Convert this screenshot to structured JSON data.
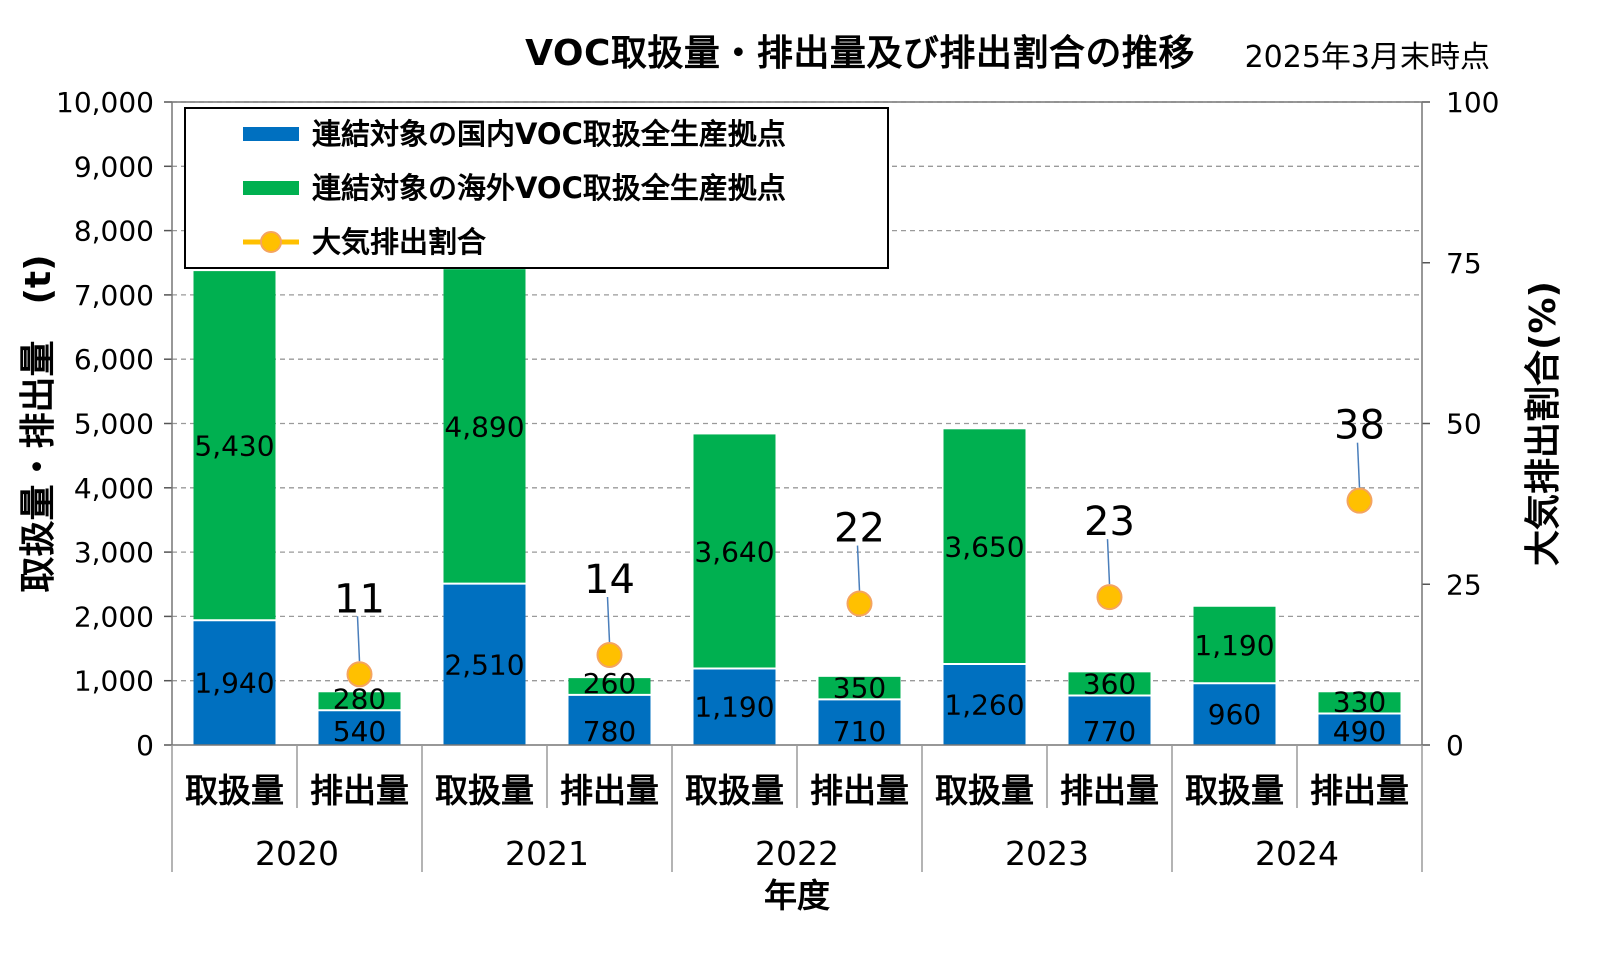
{
  "header": {
    "title": "VOC取扱量・排出量及び排出割合の推移",
    "note": "2025年3月末時点"
  },
  "chart_data": {
    "type": "bar",
    "stacked": true,
    "groups": [
      "2020",
      "2021",
      "2022",
      "2023",
      "2024"
    ],
    "subcategories": [
      "取扱量",
      "排出量"
    ],
    "categories": [
      "2020 取扱量",
      "2020 排出量",
      "2021 取扱量",
      "2021 排出量",
      "2022 取扱量",
      "2022 排出量",
      "2023 取扱量",
      "2023 排出量",
      "2024 取扱量",
      "2024 排出量"
    ],
    "series": [
      {
        "name": "連結対象の国内VOC取扱全生産拠点",
        "color": "#0070c0",
        "axis": "left",
        "values": [
          1940,
          540,
          2510,
          780,
          1190,
          710,
          1260,
          770,
          960,
          490
        ],
        "labels": [
          "1,940",
          "540",
          "2,510",
          "780",
          "1,190",
          "710",
          "1,260",
          "770",
          "960",
          "490"
        ]
      },
      {
        "name": "連結対象の海外VOC取扱全生産拠点",
        "color": "#00b050",
        "axis": "left",
        "values": [
          5430,
          280,
          4890,
          260,
          3640,
          350,
          3650,
          360,
          1190,
          330
        ],
        "labels": [
          "5,430",
          "280",
          "4,890",
          "260",
          "3,640",
          "350",
          "3,650",
          "360",
          "1,190",
          "330"
        ]
      },
      {
        "name": "大気排出割合",
        "color": "#ffc000",
        "type": "line-marker",
        "axis": "right",
        "x": [
          "2020 排出量",
          "2021 排出量",
          "2022 排出量",
          "2023 排出量",
          "2024 排出量"
        ],
        "values": [
          11,
          14,
          22,
          23,
          38
        ],
        "labels": [
          "11",
          "14",
          "22",
          "23",
          "38"
        ]
      }
    ],
    "ylabel": "取扱量・排出量　(t)",
    "y2label": "大気排出割合(%)",
    "xlabel": "年度",
    "ylim": [
      0,
      10000
    ],
    "y2lim": [
      0,
      100
    ],
    "yticks": [
      "0",
      "1,000",
      "2,000",
      "3,000",
      "4,000",
      "5,000",
      "6,000",
      "7,000",
      "8,000",
      "9,000",
      "10,000"
    ],
    "y2ticks": [
      "0",
      "25",
      "50",
      "75",
      "100"
    ],
    "grid": true,
    "legend": "top-left"
  }
}
